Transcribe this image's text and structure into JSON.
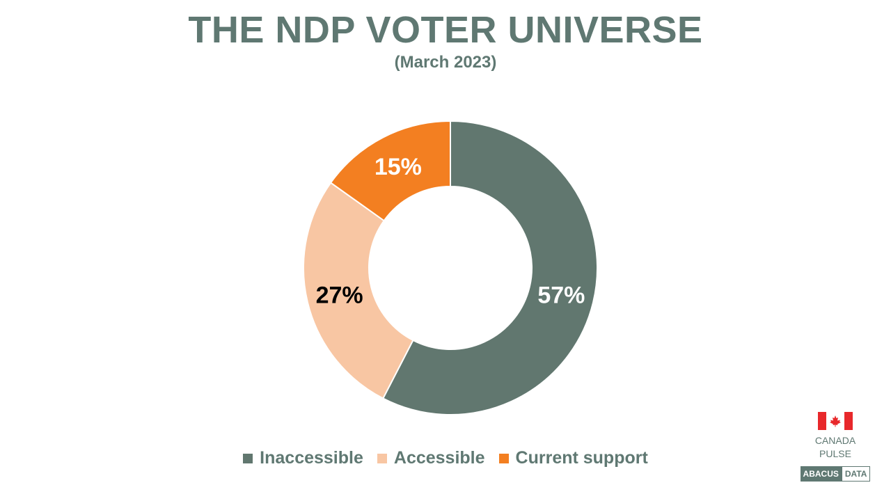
{
  "chart_data": {
    "type": "pie",
    "title": "THE NDP VOTER UNIVERSE",
    "subtitle": "(March 2023)",
    "slices": [
      {
        "name": "Inaccessible",
        "value": 57,
        "label": "57%",
        "color": "#61776f",
        "label_color": "#ffffff"
      },
      {
        "name": "Accessible",
        "value": 27,
        "label": "27%",
        "color": "#f8c6a3",
        "label_color": "#000000"
      },
      {
        "name": "Current support",
        "value": 15,
        "label": "15%",
        "color": "#f37f21",
        "label_color": "#ffffff"
      }
    ],
    "legend_position": "bottom",
    "style": "donut"
  },
  "branding": {
    "flag_icon": "canada-flag-icon",
    "line1": "CANADA",
    "line2": "PULSE",
    "company_part1": "ABACUS",
    "company_part2": "DATA",
    "flag_color": "#e8282b"
  }
}
